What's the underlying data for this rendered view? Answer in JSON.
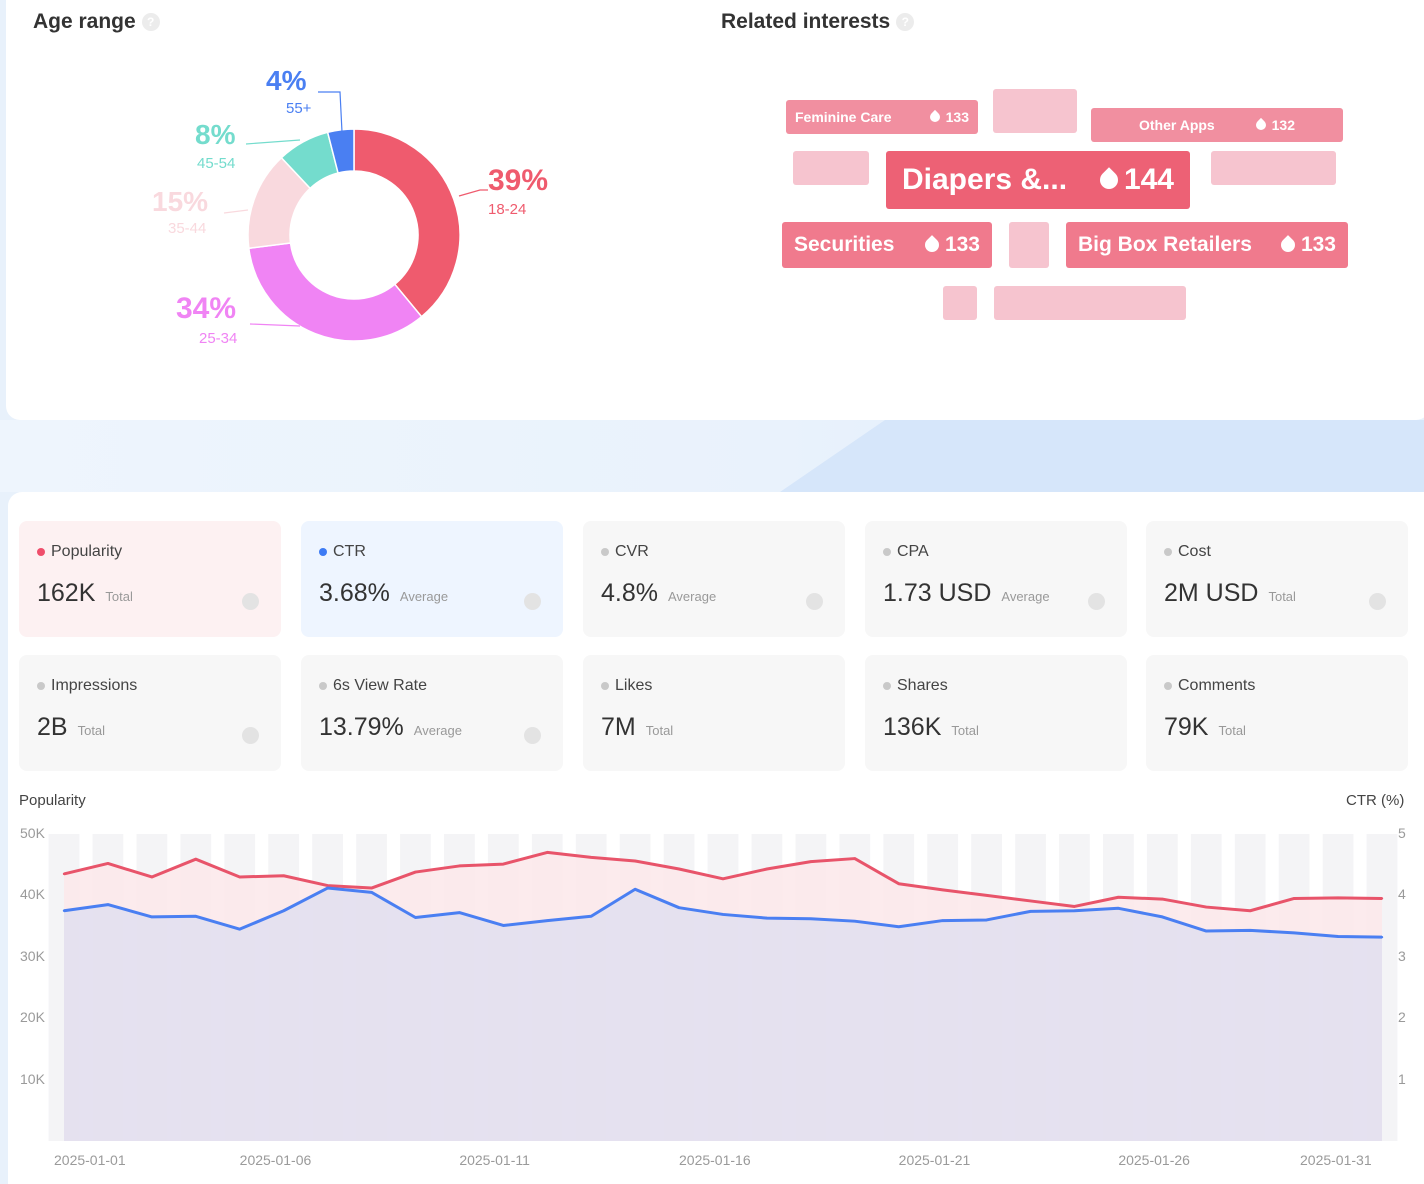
{
  "age_range": {
    "title": "Age range",
    "segments": [
      {
        "pct": "39%",
        "label": "18-24",
        "value": 39,
        "color": "#ef5b6e"
      },
      {
        "pct": "34%",
        "label": "25-34",
        "value": 34,
        "color": "#f084f4"
      },
      {
        "pct": "15%",
        "label": "35-44",
        "value": 15,
        "color": "#f9d9de"
      },
      {
        "pct": "8%",
        "label": "45-54",
        "value": 8,
        "color": "#74dccd"
      },
      {
        "pct": "4%",
        "label": "55+",
        "value": 4,
        "color": "#4a7ff2"
      }
    ]
  },
  "related_interests": {
    "title": "Related interests",
    "tags": [
      {
        "name": "Feminine Care",
        "score": "133"
      },
      {
        "name": "Other Apps",
        "score": "132"
      },
      {
        "name": "Diapers &...",
        "score": "144"
      },
      {
        "name": "Securities",
        "score": "133"
      },
      {
        "name": "Big Box Retailers",
        "score": "133"
      }
    ]
  },
  "metrics": [
    {
      "label": "Popularity",
      "value": "162K",
      "agg": "Total",
      "dot_color": "#ef4e6b",
      "bg": "#fdf1f2"
    },
    {
      "label": "CTR",
      "value": "3.68%",
      "agg": "Average",
      "dot_color": "#3d7bf4",
      "bg": "#eef5ff"
    },
    {
      "label": "CVR",
      "value": "4.8%",
      "agg": "Average",
      "dot_color": "#c9c9c9",
      "bg": "#f7f7f7"
    },
    {
      "label": "CPA",
      "value": "1.73 USD",
      "agg": "Average",
      "dot_color": "#c9c9c9",
      "bg": "#f7f7f7"
    },
    {
      "label": "Cost",
      "value": "2M USD",
      "agg": "Total",
      "dot_color": "#c9c9c9",
      "bg": "#f7f7f7"
    },
    {
      "label": "Impressions",
      "value": "2B",
      "agg": "Total",
      "dot_color": "#c9c9c9",
      "bg": "#f7f7f7"
    },
    {
      "label": "6s View Rate",
      "value": "13.79%",
      "agg": "Average",
      "dot_color": "#c9c9c9",
      "bg": "#f7f7f7"
    },
    {
      "label": "Likes",
      "value": "7M",
      "agg": "Total",
      "dot_color": "#c9c9c9",
      "bg": "#f7f7f7"
    },
    {
      "label": "Shares",
      "value": "136K",
      "agg": "Total",
      "dot_color": "#c9c9c9",
      "bg": "#f7f7f7"
    },
    {
      "label": "Comments",
      "value": "79K",
      "agg": "Total",
      "dot_color": "#c9c9c9",
      "bg": "#f7f7f7"
    }
  ],
  "chart_data": {
    "type": "line",
    "ylabel": "Popularity",
    "y2label": "CTR (%)",
    "ylim": [
      0,
      50000
    ],
    "y2lim": [
      0,
      5
    ],
    "yticks": [
      "50K",
      "40K",
      "30K",
      "20K",
      "10K"
    ],
    "y2ticks": [
      "5",
      "4",
      "3",
      "2",
      "1"
    ],
    "xtick_labels": [
      "2025-01-01",
      "2025-01-06",
      "2025-01-11",
      "2025-01-16",
      "2025-01-21",
      "2025-01-26",
      "2025-01-31"
    ],
    "x": [
      "2025-01-01",
      "2025-01-02",
      "2025-01-03",
      "2025-01-04",
      "2025-01-05",
      "2025-01-06",
      "2025-01-07",
      "2025-01-08",
      "2025-01-09",
      "2025-01-10",
      "2025-01-11",
      "2025-01-12",
      "2025-01-13",
      "2025-01-14",
      "2025-01-15",
      "2025-01-16",
      "2025-01-17",
      "2025-01-18",
      "2025-01-19",
      "2025-01-20",
      "2025-01-21",
      "2025-01-22",
      "2025-01-23",
      "2025-01-24",
      "2025-01-25",
      "2025-01-26",
      "2025-01-27",
      "2025-01-28",
      "2025-01-29",
      "2025-01-30",
      "2025-01-31"
    ],
    "series": [
      {
        "name": "Popularity",
        "axis": "left",
        "color": "#e8546a",
        "fill": "#fbe7ea",
        "values": [
          43500,
          45200,
          43000,
          45900,
          43000,
          43200,
          41600,
          41200,
          43800,
          44800,
          45100,
          47000,
          46200,
          45600,
          44300,
          42700,
          44300,
          45500,
          46000,
          41900,
          40900,
          40000,
          39100,
          38200,
          39700,
          39400,
          38100,
          37500,
          39500,
          39600,
          39500
        ]
      },
      {
        "name": "CTR",
        "axis": "right",
        "color": "#4a7ff2",
        "fill": "#e1dff0",
        "values": [
          3.75,
          3.85,
          3.65,
          3.66,
          3.45,
          3.75,
          4.12,
          4.05,
          3.64,
          3.72,
          3.51,
          3.59,
          3.66,
          4.1,
          3.8,
          3.69,
          3.63,
          3.62,
          3.58,
          3.49,
          3.59,
          3.6,
          3.74,
          3.75,
          3.79,
          3.65,
          3.42,
          3.43,
          3.39,
          3.33,
          3.32
        ]
      }
    ]
  }
}
